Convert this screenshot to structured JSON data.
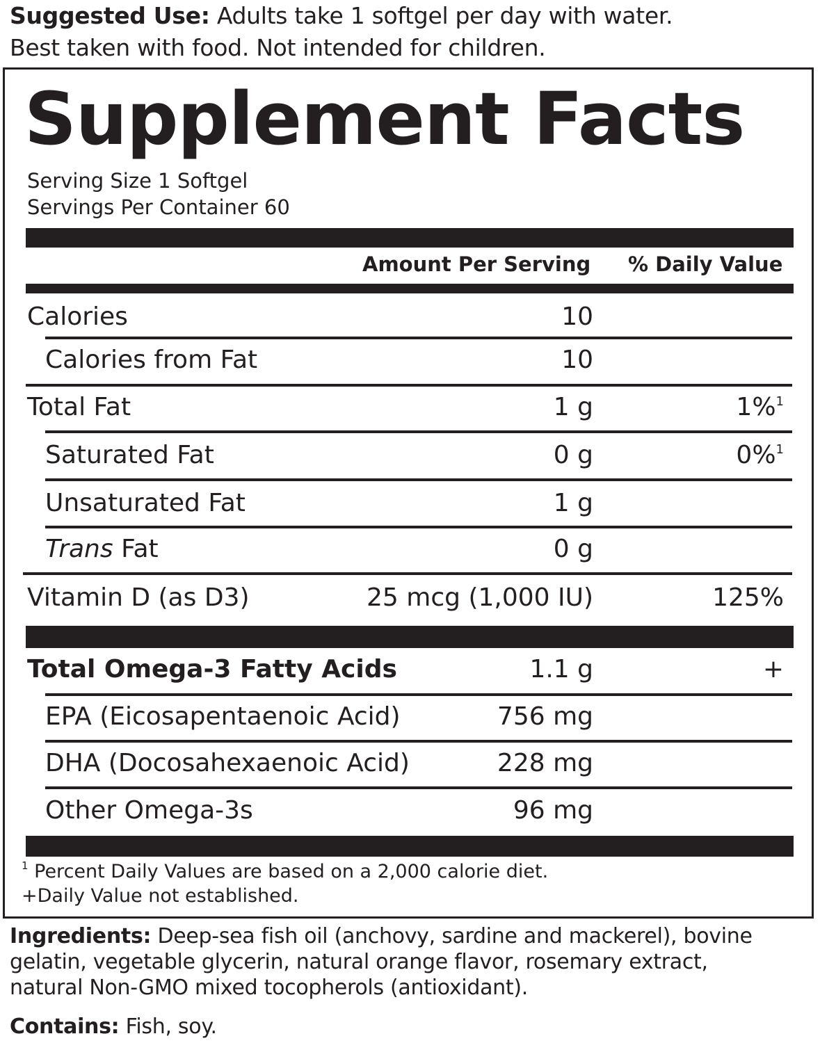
{
  "suggested_use": {
    "label": "Suggested Use:",
    "line1": " Adults take 1 softgel per day with water.",
    "line2": "Best taken with food. Not intended for children."
  },
  "panel": {
    "title": "Supplement Facts",
    "serving_size": "Serving Size 1 Softgel",
    "servings_per_container": "Servings Per Container 60",
    "header_amount": "Amount Per Serving",
    "header_dv": "% Daily Value",
    "rows": [
      {
        "name": "Calories",
        "amount": "10",
        "dv": ""
      },
      {
        "name": "Calories from Fat",
        "amount": "10",
        "dv": ""
      },
      {
        "name": "Total Fat",
        "amount": "1 g",
        "dv": "1%",
        "dv_sup": "1"
      },
      {
        "name": "Saturated Fat",
        "amount": "0 g",
        "dv": "0%",
        "dv_sup": "1"
      },
      {
        "name": "Unsaturated Fat",
        "amount": "1 g",
        "dv": ""
      },
      {
        "name_italic": "Trans",
        "name": " Fat",
        "amount": "0 g",
        "dv": ""
      },
      {
        "name": "Vitamin D (as D3)",
        "amount": "25 mcg (1,000 IU)",
        "dv": "125%"
      },
      {
        "name": "Total Omega-3 Fatty Acids",
        "amount": "1.1 g",
        "dv": "+"
      },
      {
        "name": "EPA (Eicosapentaenoic Acid)",
        "amount": "756 mg",
        "dv": ""
      },
      {
        "name": "DHA (Docosahexaenoic Acid)",
        "amount": "228 mg",
        "dv": ""
      },
      {
        "name": "Other Omega-3s",
        "amount": "96 mg",
        "dv": ""
      }
    ],
    "footnote1_sup": "1",
    "footnote1": " Percent Daily Values are based on a 2,000 calorie diet.",
    "footnote2": "+Daily Value not established."
  },
  "ingredients": {
    "label": "Ingredients:",
    "line1": " Deep-sea fish oil (anchovy, sardine and mackerel), bovine",
    "line2": "gelatin, vegetable glycerin, natural orange flavor, rosemary extract,",
    "line3": "natural Non-GMO mixed tocopherols (antioxidant)."
  },
  "contains": {
    "label": "Contains:",
    "text": " Fish, soy."
  }
}
